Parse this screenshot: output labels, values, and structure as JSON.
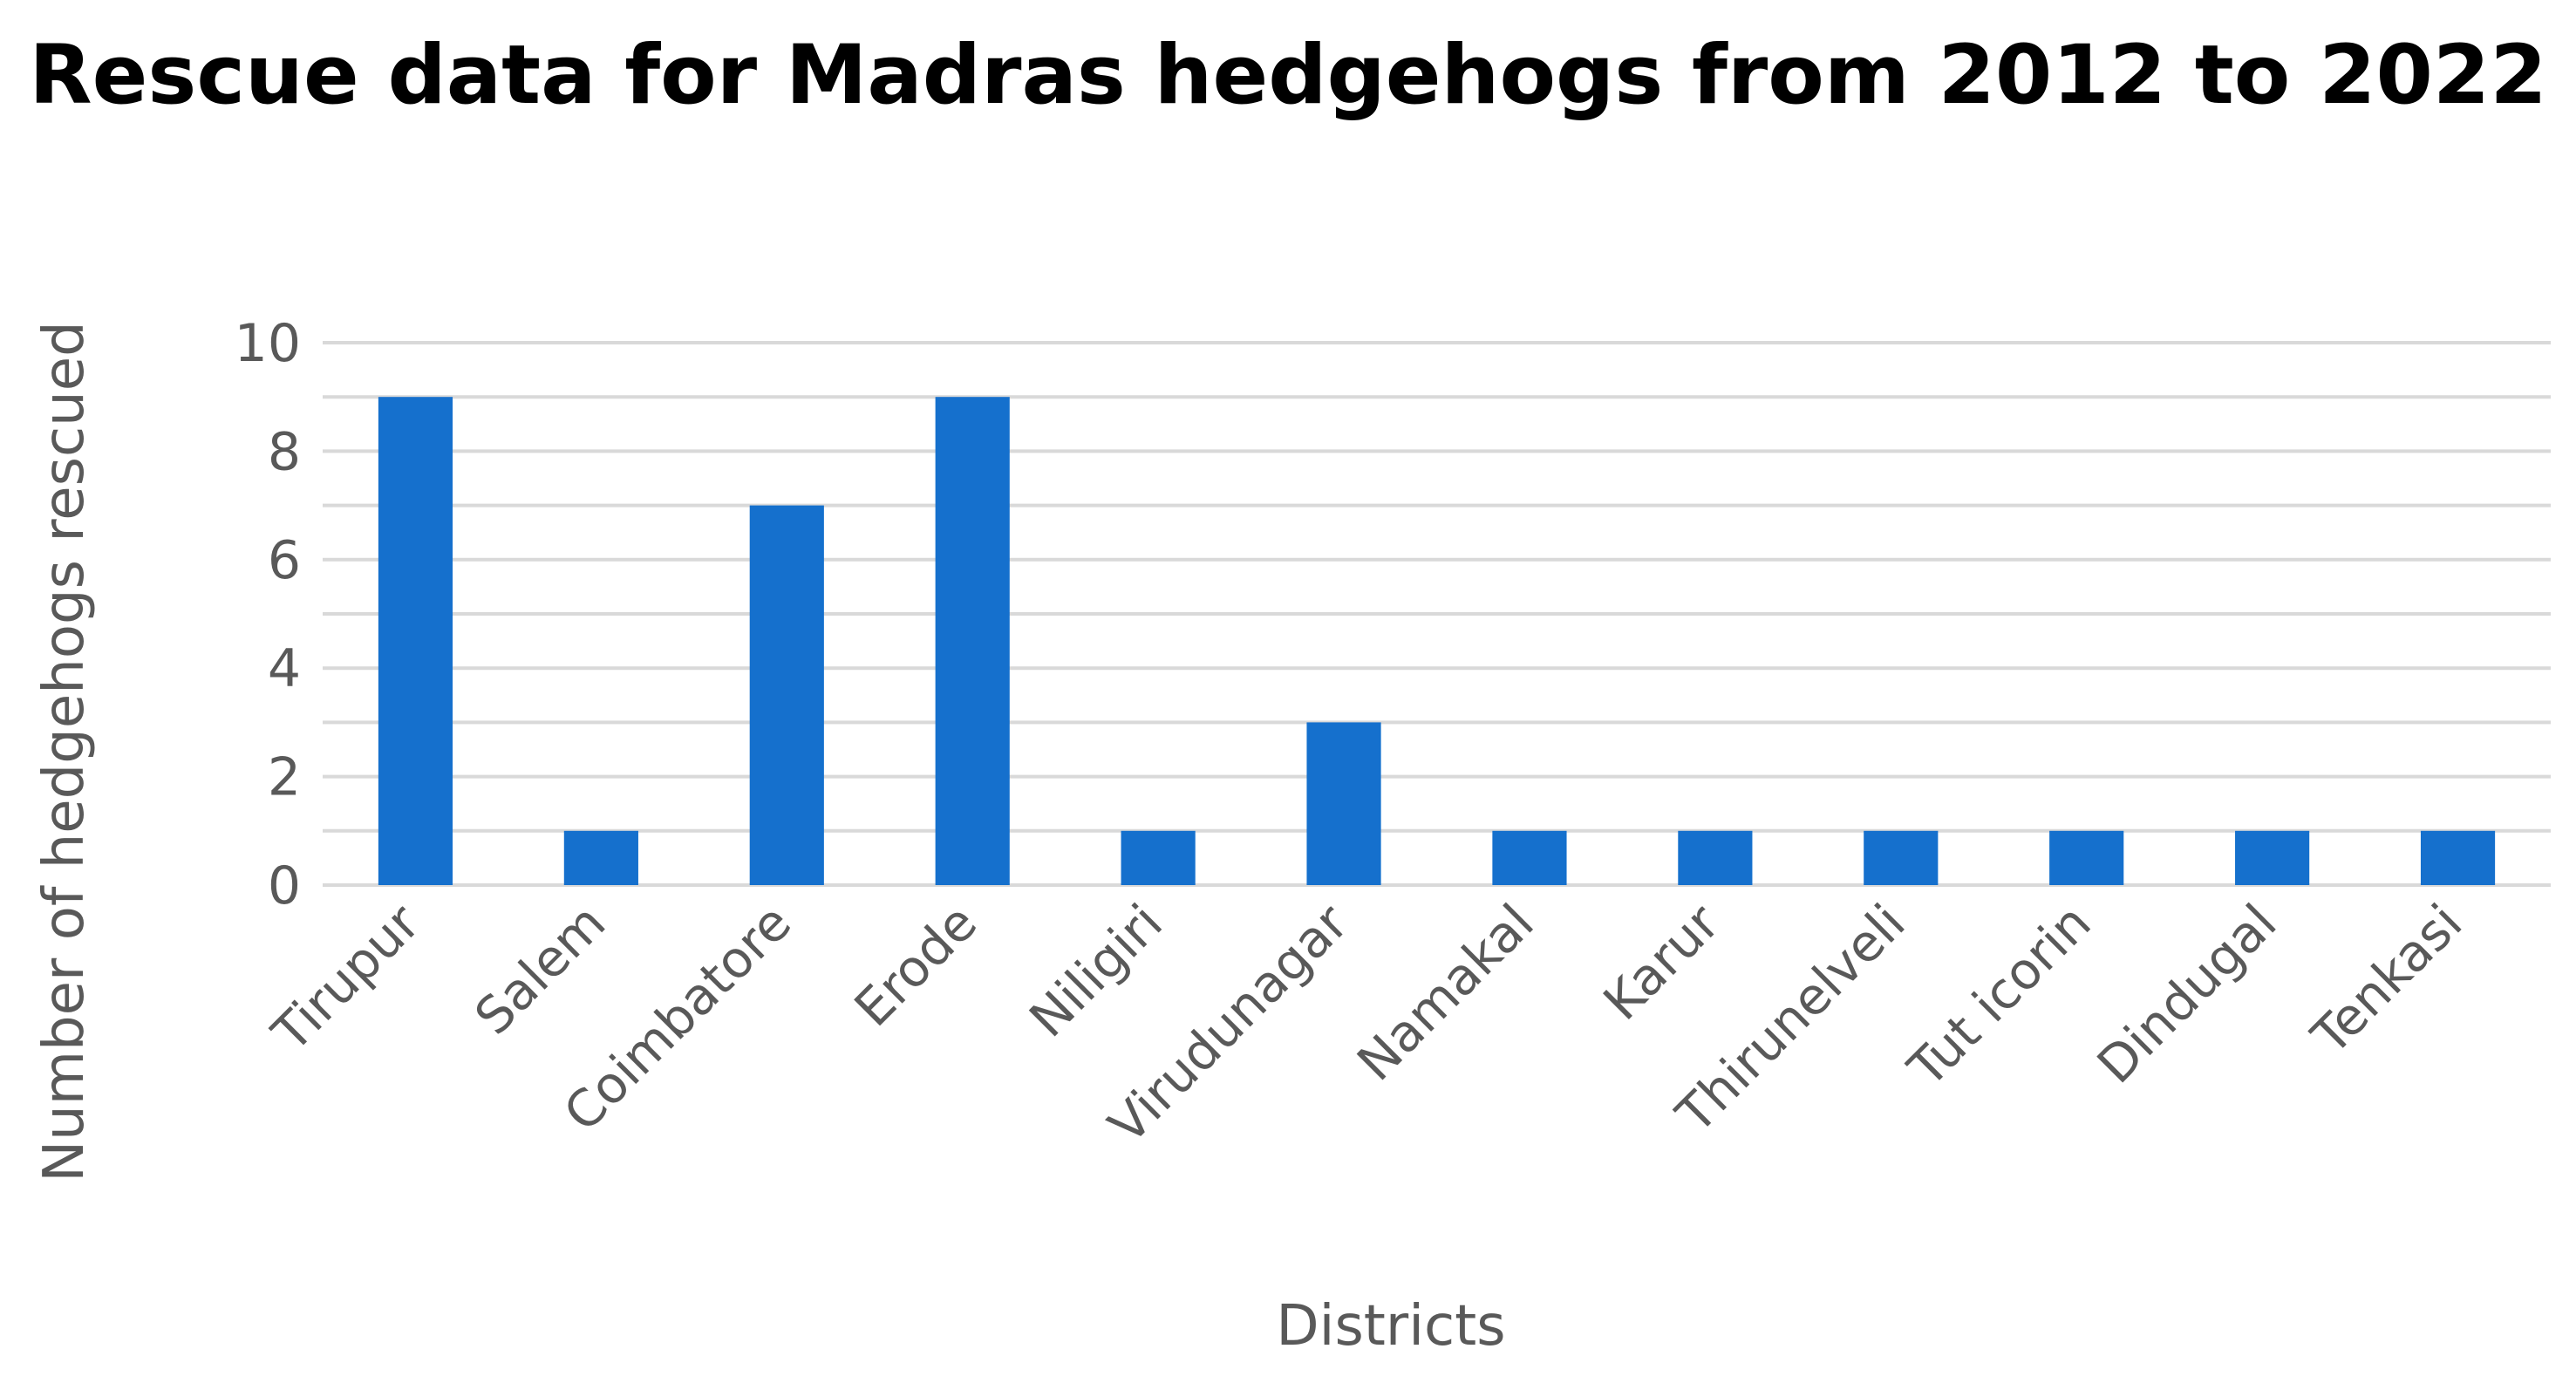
{
  "chart_data": {
    "type": "bar",
    "title": "Rescue data for Madras hedgehogs from 2012 to 2022",
    "xlabel": "Districts",
    "ylabel": "Number of hedgehogs rescued",
    "categories": [
      "Tirupur",
      "Salem",
      "Coimbatore",
      "Erode",
      "Niligiri",
      "Virudunagar",
      "Namakal",
      "Karur",
      "Thirunelveli",
      "Tut icorin",
      "Dindugal",
      "Tenkasi"
    ],
    "values": [
      9,
      1,
      7,
      9,
      1,
      3,
      1,
      1,
      1,
      1,
      1,
      1
    ],
    "ylim": [
      0,
      10
    ],
    "yticks": [
      0,
      2,
      4,
      6,
      8,
      10
    ],
    "minor_grid_step": 1,
    "grid": true,
    "legend": "none",
    "bar_color": "#1570cd"
  }
}
